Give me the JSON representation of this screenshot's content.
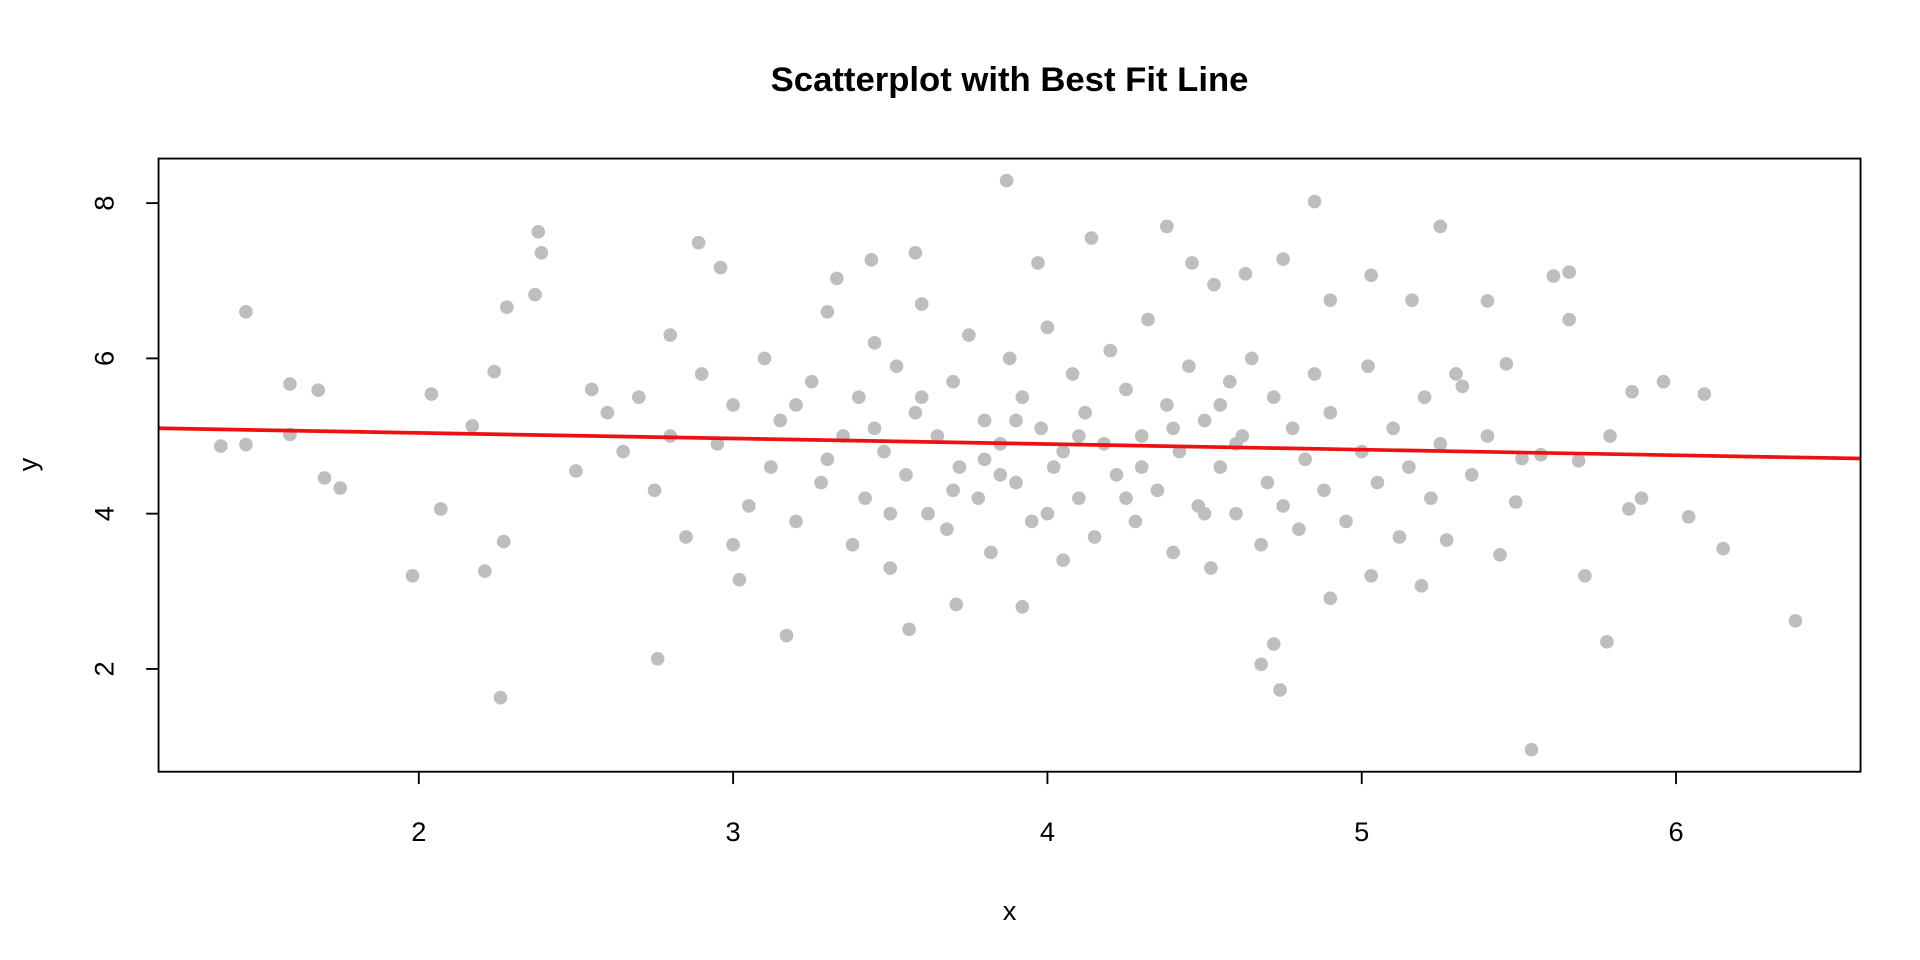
{
  "chart_data": {
    "type": "scatter",
    "title": "Scatterplot with Best Fit Line",
    "x_label": "x",
    "y_label": "y",
    "xlim": [
      1.172,
      6.587
    ],
    "ylim": [
      0.676,
      8.574
    ],
    "xticks": [
      2,
      3,
      4,
      5,
      6
    ],
    "yticks": [
      2,
      4,
      6,
      8
    ],
    "grid": false,
    "color": "#bebebe",
    "x": [
      1.37,
      1.45,
      1.45,
      1.59,
      1.59,
      1.68,
      1.7,
      1.75,
      1.98,
      2.07,
      2.04,
      2.17,
      2.21,
      2.26,
      2.28,
      2.27,
      2.38,
      2.39,
      2.37,
      2.24,
      2.76,
      2.89,
      2.96,
      3.17,
      3.02,
      3.33,
      3.44,
      3.58,
      3.56,
      3.87,
      3.71,
      3.92,
      3.97,
      4.14,
      4.38,
      4.46,
      4.53,
      4.63,
      4.75,
      4.85,
      4.9,
      4.68,
      4.74,
      4.72,
      4.9,
      5.03,
      5.16,
      5.25,
      5.4,
      5.54,
      5.46,
      5.44,
      5.61,
      5.66,
      5.66,
      5.71,
      5.78,
      5.85,
      5.86,
      5.96,
      6.04,
      6.09,
      6.15,
      6.38,
      5.89,
      5.79,
      5.69,
      5.57,
      5.49,
      5.27,
      5.19,
      5.03,
      5.32,
      5.51,
      2.5,
      2.55,
      2.6,
      2.65,
      2.7,
      2.75,
      2.8,
      2.85,
      2.9,
      2.95,
      3.0,
      3.05,
      3.1,
      3.12,
      3.15,
      3.2,
      3.25,
      3.28,
      3.3,
      3.35,
      3.38,
      3.4,
      3.42,
      3.45,
      3.48,
      3.5,
      3.52,
      3.55,
      3.58,
      3.6,
      3.62,
      3.65,
      3.68,
      3.7,
      3.72,
      3.75,
      3.78,
      3.8,
      3.82,
      3.85,
      3.88,
      3.9,
      3.92,
      3.95,
      3.98,
      4.0,
      4.02,
      4.05,
      4.08,
      4.1,
      4.12,
      4.15,
      4.18,
      4.2,
      4.22,
      4.25,
      4.28,
      4.3,
      4.32,
      4.35,
      4.38,
      4.4,
      4.42,
      4.45,
      4.48,
      4.5,
      4.52,
      4.55,
      4.58,
      4.6,
      4.62,
      4.65,
      4.68,
      4.7,
      4.72,
      4.75,
      4.78,
      4.8,
      4.82,
      4.85,
      4.88,
      4.9,
      4.95,
      5.0,
      5.02,
      5.05,
      5.1,
      5.12,
      5.15,
      5.2,
      5.22,
      5.25,
      5.3,
      5.35,
      5.4,
      3.0,
      3.5,
      4.0,
      4.5,
      3.3,
      3.9,
      4.4,
      3.6,
      4.3,
      3.7,
      4.1,
      3.8,
      4.6,
      2.8,
      3.2,
      3.45,
      4.05,
      4.25,
      4.55,
      3.85
    ],
    "values": [
      4.87,
      6.6,
      4.89,
      5.67,
      5.02,
      5.59,
      4.46,
      4.33,
      3.2,
      4.06,
      5.54,
      5.13,
      3.26,
      1.63,
      6.66,
      3.64,
      7.63,
      7.36,
      6.82,
      5.83,
      2.13,
      7.49,
      7.17,
      2.43,
      3.15,
      7.03,
      7.27,
      7.36,
      2.51,
      8.29,
      2.83,
      2.8,
      7.23,
      7.55,
      7.7,
      7.23,
      6.95,
      7.09,
      7.28,
      8.02,
      6.75,
      2.06,
      1.73,
      2.32,
      2.91,
      7.07,
      6.75,
      7.7,
      6.74,
      0.96,
      5.93,
      3.47,
      7.06,
      7.11,
      6.5,
      3.2,
      2.35,
      4.06,
      5.57,
      5.7,
      3.96,
      5.54,
      3.55,
      2.62,
      4.2,
      5.0,
      4.68,
      4.76,
      4.15,
      3.66,
      3.07,
      3.2,
      5.64,
      4.71,
      4.55,
      5.6,
      5.3,
      4.8,
      5.5,
      4.3,
      6.3,
      3.7,
      5.8,
      4.9,
      5.4,
      4.1,
      6.0,
      4.6,
      5.2,
      3.9,
      5.7,
      4.4,
      6.6,
      5.0,
      3.6,
      5.5,
      4.2,
      6.2,
      4.8,
      3.3,
      5.9,
      4.5,
      5.3,
      6.7,
      4.0,
      5.0,
      3.8,
      5.7,
      4.6,
      6.3,
      4.2,
      5.2,
      3.5,
      4.9,
      6.0,
      4.4,
      5.5,
      3.9,
      5.1,
      6.4,
      4.6,
      3.4,
      5.8,
      4.2,
      5.3,
      3.7,
      4.9,
      6.1,
      4.5,
      5.6,
      3.9,
      5.0,
      6.5,
      4.3,
      5.4,
      3.5,
      4.8,
      5.9,
      4.1,
      5.2,
      3.3,
      4.6,
      5.7,
      4.0,
      5.0,
      6.0,
      3.6,
      4.4,
      5.5,
      4.1,
      5.1,
      3.8,
      4.7,
      5.8,
      4.3,
      5.3,
      3.9,
      4.8,
      5.9,
      4.4,
      5.1,
      3.7,
      4.6,
      5.5,
      4.2,
      4.9,
      5.8,
      4.5,
      5.0,
      3.6,
      4.0,
      4.0,
      4.0,
      4.7,
      5.2,
      5.1,
      5.5,
      4.6,
      4.3,
      5.0,
      4.7,
      4.9,
      5.0,
      5.4,
      5.1,
      4.8,
      4.2,
      5.4,
      4.5
    ],
    "fit_line": {
      "color": "#ee1111",
      "x": [
        1.172,
        6.587
      ],
      "values": [
        5.1,
        4.71
      ]
    }
  }
}
